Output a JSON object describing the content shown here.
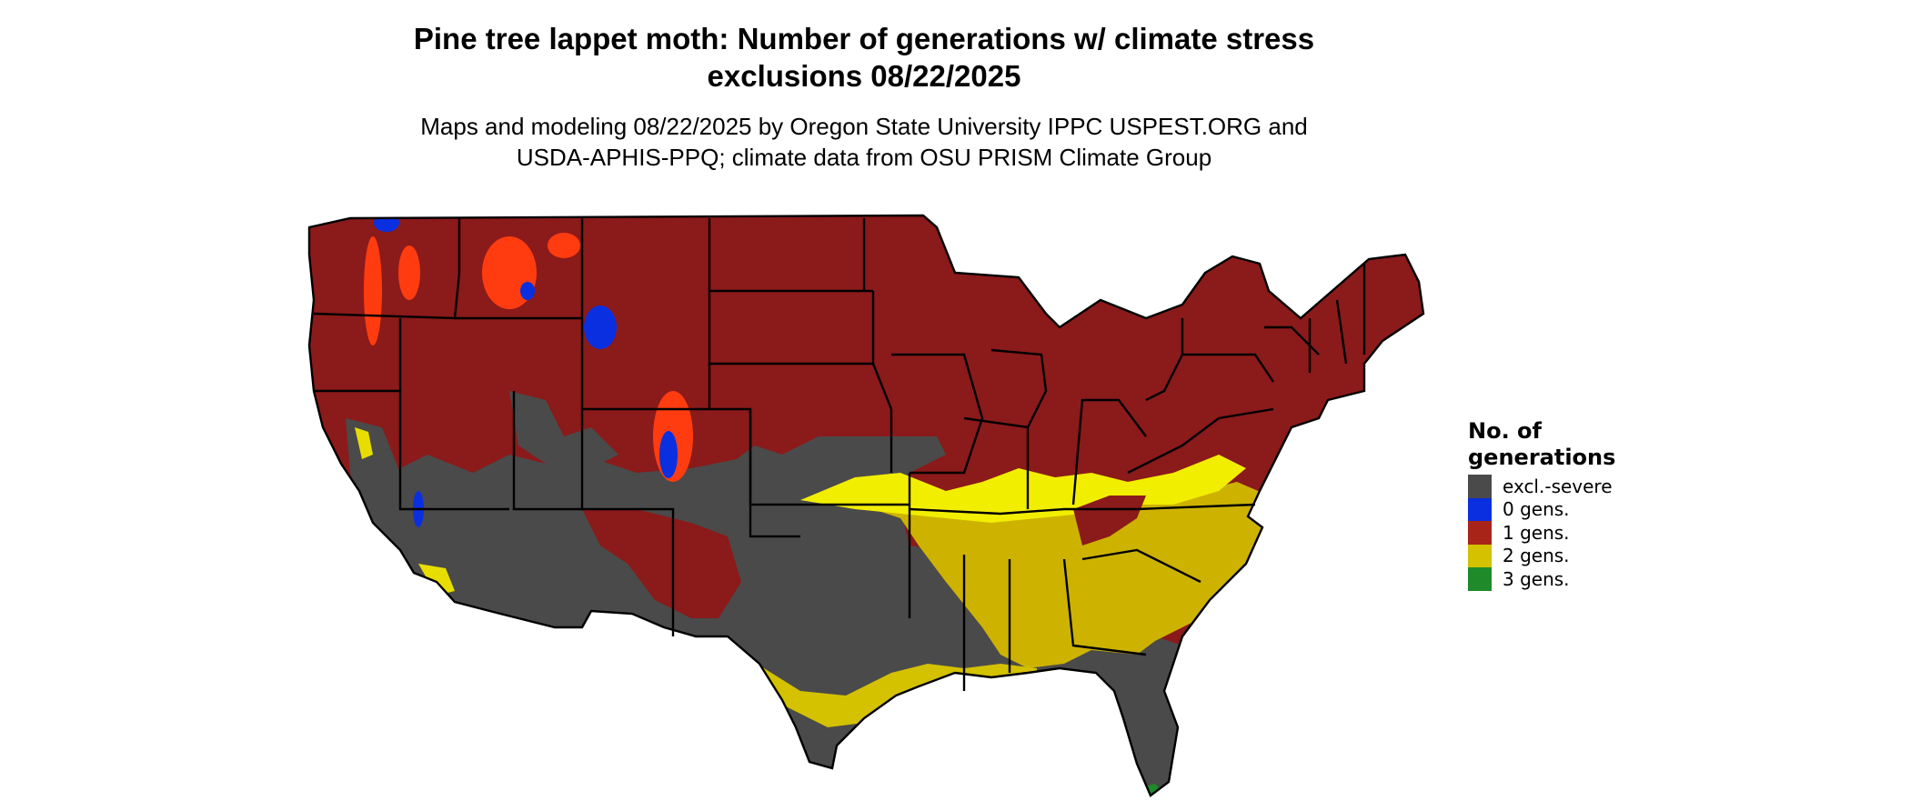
{
  "header": {
    "title": "Pine tree lappet moth: Number of generations w/ climate stress\nexclusions 08/22/2025",
    "subtitle": "Maps and modeling 08/22/2025 by Oregon State University IPPC USPEST.ORG and\nUSDA-APHIS-PPQ; climate data from OSU PRISM Climate Group"
  },
  "legend": {
    "title": "No. of\ngenerations",
    "items": [
      {
        "label": "excl.-severe",
        "color": "#4a4a4a"
      },
      {
        "label": "0 gens.",
        "color": "#0a2fe0"
      },
      {
        "label": "1 gens.",
        "color": "#a82418"
      },
      {
        "label": "2 gens.",
        "color": "#d4c100"
      },
      {
        "label": "3 gens.",
        "color": "#1e8a2a"
      }
    ]
  },
  "map_colors": {
    "one_gen_dark": "#8b1a1a",
    "two_gen_bright": "#f2ee00",
    "high_elev_orange": "#ff3c10"
  }
}
